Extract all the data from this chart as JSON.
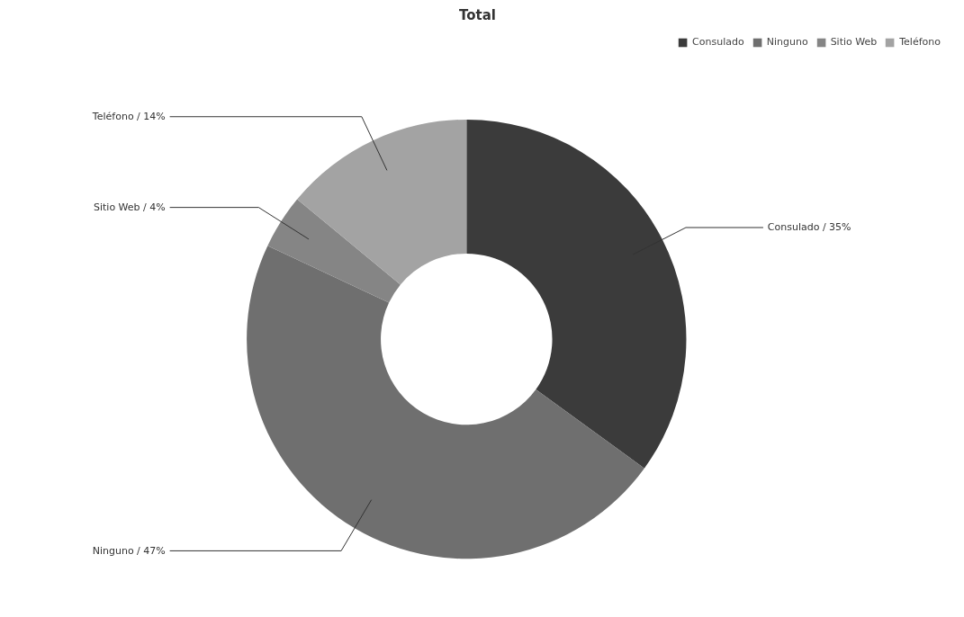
{
  "chart_data": {
    "type": "donut",
    "title": "Total",
    "categories": [
      "Consulado",
      "Ninguno",
      "Sitio Web",
      "Teléfono"
    ],
    "values": [
      35,
      47,
      4,
      14
    ],
    "colors": [
      "#3b3b3b",
      "#6f6f6f",
      "#858585",
      "#a3a3a3"
    ],
    "value_labels": [
      "Consulado / 35%",
      "Ninguno / 47%",
      "Sitio Web / 4%",
      "Teléfono / 14%"
    ],
    "legend": "top right"
  }
}
